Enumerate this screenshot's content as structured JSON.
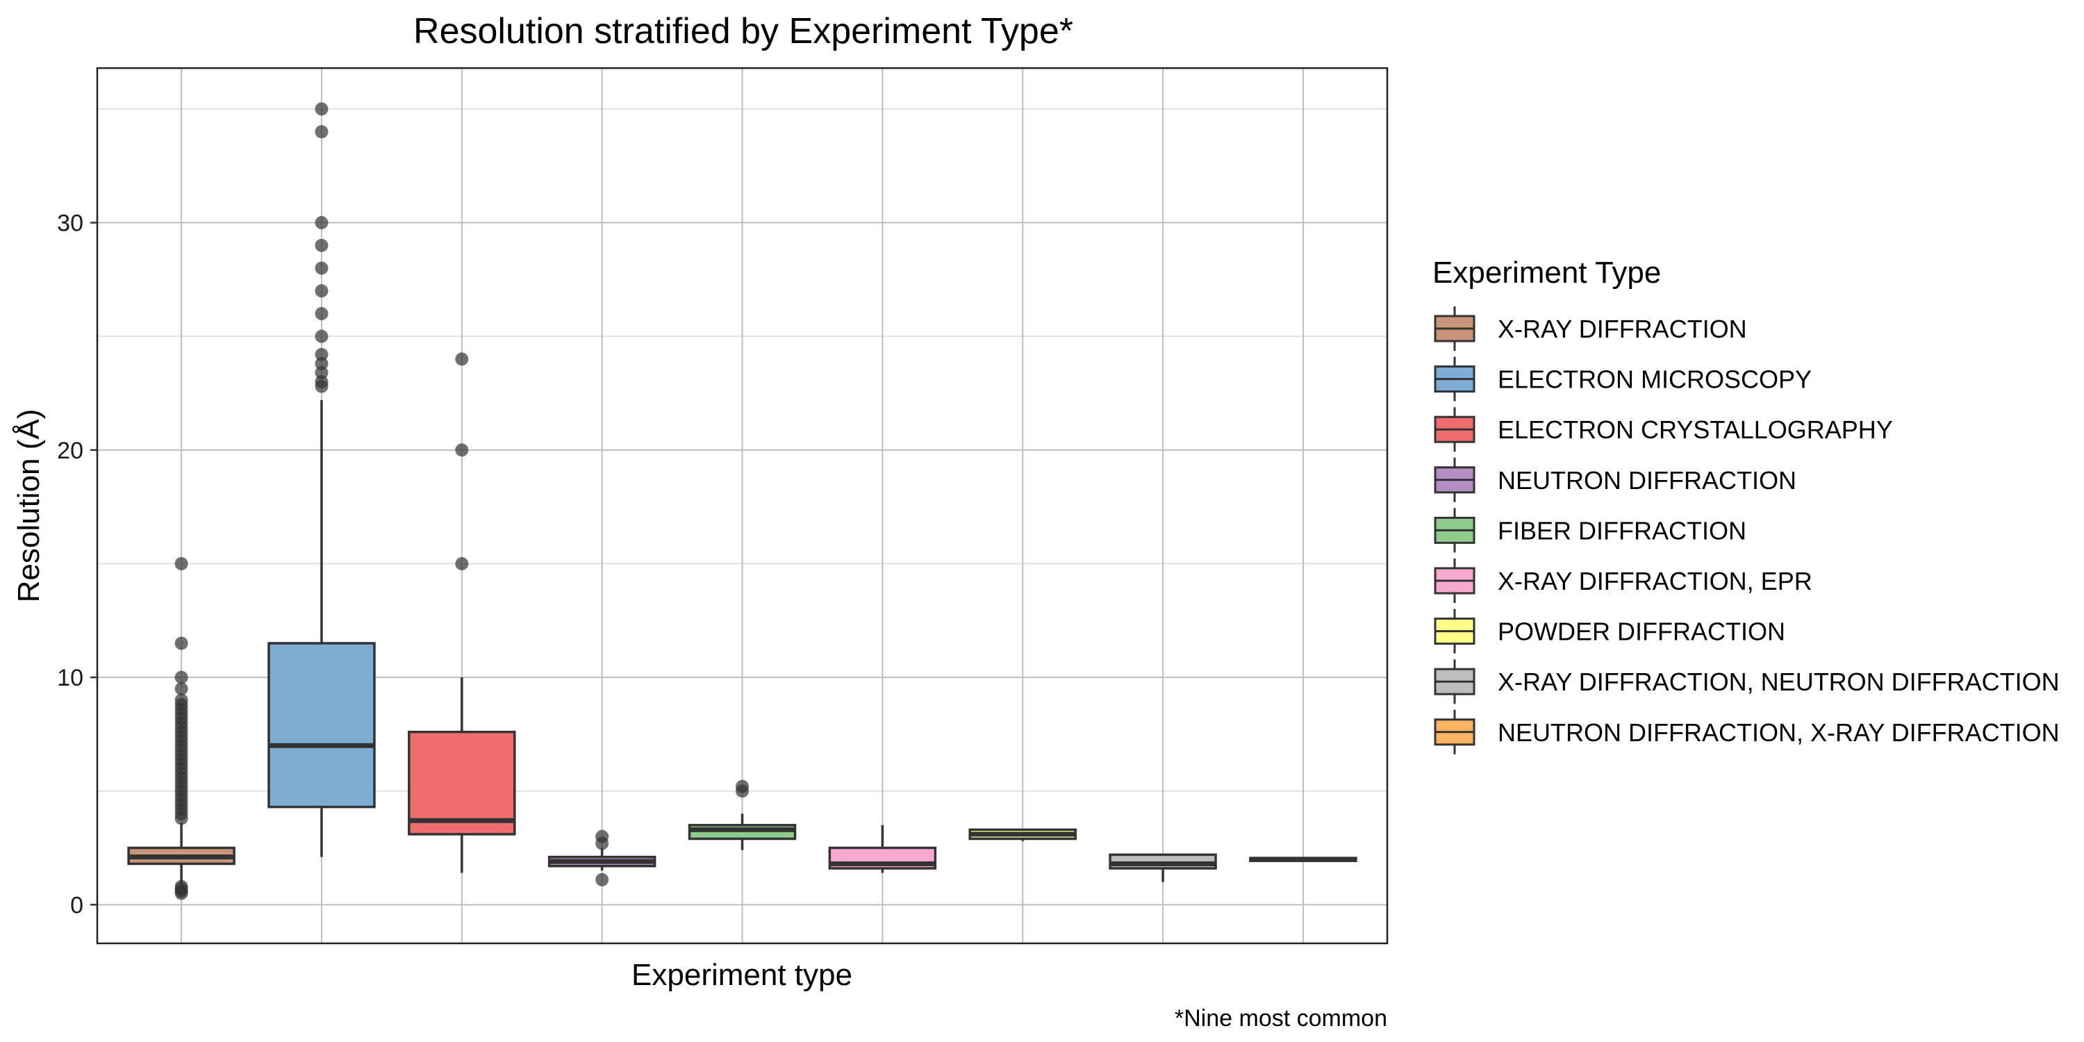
{
  "chart_data": {
    "type": "box",
    "title": "Resolution stratified by Experiment Type*",
    "xlabel": "Experiment type",
    "ylabel": "Resolution (Å)",
    "caption": "*Nine most common",
    "ylim": [
      -1.7,
      36.8
    ],
    "yticks": [
      0,
      10,
      20,
      30
    ],
    "grid": true,
    "legend": {
      "title": "Experiment Type",
      "position": "right"
    },
    "series": [
      {
        "name": "X-RAY DIFFRACTION",
        "color": "#C8957A",
        "stats": {
          "min": 0.9,
          "q1": 1.8,
          "median": 2.1,
          "q3": 2.5,
          "max": 3.6
        },
        "outliers": [
          15.0,
          11.5,
          10.0,
          9.5,
          9.0,
          8.8,
          8.6,
          8.4,
          8.2,
          8.0,
          7.8,
          7.6,
          7.4,
          7.2,
          7.0,
          6.8,
          6.6,
          6.4,
          6.2,
          6.0,
          5.8,
          5.6,
          5.4,
          5.2,
          5.0,
          4.8,
          4.6,
          4.4,
          4.2,
          4.0,
          3.8,
          0.8,
          0.7,
          0.6,
          0.5
        ]
      },
      {
        "name": "ELECTRON MICROSCOPY",
        "color": "#7EADD4",
        "stats": {
          "min": 2.1,
          "q1": 4.3,
          "median": 7.0,
          "q3": 11.5,
          "max": 22.2
        },
        "outliers": [
          35.0,
          34.0,
          30.0,
          29.0,
          28.0,
          27.0,
          26.0,
          25.0,
          24.2,
          23.8,
          23.4,
          23.0,
          22.8
        ]
      },
      {
        "name": "ELECTRON CRYSTALLOGRAPHY",
        "color": "#EF6C6E",
        "stats": {
          "min": 1.4,
          "q1": 3.1,
          "median": 3.7,
          "q3": 7.6,
          "max": 10.0
        },
        "outliers": [
          24.0,
          20.0,
          15.0
        ]
      },
      {
        "name": "NEUTRON DIFFRACTION",
        "color": "#B48EC3",
        "stats": {
          "min": 1.5,
          "q1": 1.7,
          "median": 1.9,
          "q3": 2.1,
          "max": 2.5
        },
        "outliers": [
          3.0,
          2.7,
          1.1
        ]
      },
      {
        "name": "FIBER DIFFRACTION",
        "color": "#8FCB8A",
        "stats": {
          "min": 2.4,
          "q1": 2.9,
          "median": 3.3,
          "q3": 3.5,
          "max": 4.0
        },
        "outliers": [
          5.2,
          5.0
        ]
      },
      {
        "name": "X-RAY DIFFRACTION, EPR",
        "color": "#F7A9CF",
        "stats": {
          "min": 1.4,
          "q1": 1.6,
          "median": 1.8,
          "q3": 2.5,
          "max": 3.5
        },
        "outliers": []
      },
      {
        "name": "POWDER DIFFRACTION",
        "color": "#FFFF8A",
        "stats": {
          "min": 2.8,
          "q1": 2.9,
          "median": 3.1,
          "q3": 3.3,
          "max": 3.3
        },
        "outliers": []
      },
      {
        "name": "X-RAY DIFFRACTION, NEUTRON DIFFRACTION",
        "color": "#BDBDBD",
        "stats": {
          "min": 1.0,
          "q1": 1.6,
          "median": 1.8,
          "q3": 2.2,
          "max": 2.2
        },
        "outliers": []
      },
      {
        "name": "NEUTRON DIFFRACTION, X-RAY DIFFRACTION",
        "color": "#FDB462",
        "stats": {
          "min": 1.95,
          "q1": 1.95,
          "median": 2.0,
          "q3": 2.05,
          "max": 2.05
        },
        "outliers": []
      }
    ]
  }
}
